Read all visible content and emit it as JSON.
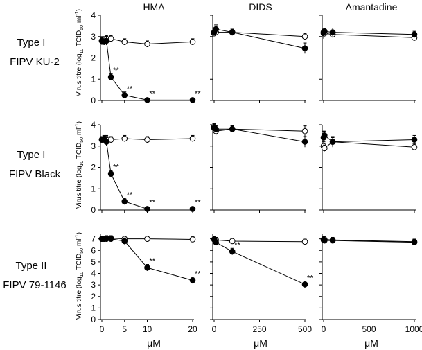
{
  "figure": {
    "columns": [
      "HMA",
      "DIDS",
      "Amantadine"
    ],
    "rows": [
      {
        "type": "Type I",
        "strain": "FIPV KU-2"
      },
      {
        "type": "Type I",
        "strain": "FIPV Black"
      },
      {
        "type": "Type II",
        "strain": "FIPV 79-1146"
      }
    ],
    "ylabel": {
      "prefix": "Virus titre (log",
      "sub10": "10",
      "tcid": " TCID",
      "sub50": "50",
      "unit": " ml",
      "sup": "-1",
      "suffix": ")"
    },
    "xlabel": "μM",
    "significance_label": "**",
    "colors": {
      "axis": "#000000",
      "filled": "#000000",
      "open": "#ffffff"
    }
  },
  "chart_data": [
    {
      "type": "line",
      "title": "HMA",
      "row": "Type I FIPV KU-2",
      "xlabel": "μM",
      "ylabel": "Virus titre (log10 TCID50 ml-1)",
      "xlim": [
        0,
        20
      ],
      "ylim": [
        0,
        4
      ],
      "xticks": [
        0,
        5,
        10,
        20
      ],
      "yticks": [
        0,
        1,
        2,
        3,
        4
      ],
      "xtick_labels": [],
      "ytick_labels": [
        "0",
        "1",
        "2",
        "3",
        "4"
      ],
      "series": [
        {
          "name": "filled",
          "x": [
            0,
            0.5,
            1,
            2,
            5,
            10,
            20
          ],
          "values": [
            2.8,
            2.75,
            2.8,
            1.1,
            0.25,
            0.02,
            0.02
          ],
          "errors": [
            0.1,
            0.05,
            0.1,
            0.05,
            0.05,
            0,
            0
          ]
        },
        {
          "name": "open",
          "x": [
            0,
            0.5,
            1,
            2,
            5,
            10,
            20
          ],
          "values": [
            2.8,
            2.85,
            2.9,
            2.9,
            2.75,
            2.65,
            2.75
          ],
          "errors": [
            0.05,
            0.05,
            0.05,
            0.05,
            0.05,
            0.05,
            0.05
          ]
        }
      ],
      "annotations": [
        {
          "x": 2,
          "y": 1.1,
          "text": "**"
        },
        {
          "x": 5,
          "y": 0.25,
          "text": "**"
        },
        {
          "x": 10,
          "y": 0.02,
          "text": "**"
        },
        {
          "x": 20,
          "y": 0.02,
          "text": "**"
        }
      ]
    },
    {
      "type": "line",
      "title": "DIDS",
      "row": "Type I FIPV KU-2",
      "xlabel": "μM",
      "xlim": [
        0,
        500
      ],
      "ylim": [
        0,
        4
      ],
      "xticks": [
        0,
        250,
        500
      ],
      "yticks": [
        0,
        1,
        2,
        3,
        4
      ],
      "xtick_labels": [],
      "ytick_labels": [],
      "series": [
        {
          "name": "filled",
          "x": [
            0,
            10,
            100,
            500
          ],
          "values": [
            3.2,
            3.35,
            3.2,
            2.45
          ],
          "errors": [
            0.05,
            0.1,
            0.05,
            0.15
          ]
        },
        {
          "name": "open",
          "x": [
            0,
            10,
            100,
            500
          ],
          "values": [
            3.15,
            3.2,
            3.2,
            3.0
          ],
          "errors": [
            0.05,
            0.05,
            0.05,
            0.05
          ]
        }
      ],
      "annotations": []
    },
    {
      "type": "line",
      "title": "Amantadine",
      "row": "Type I FIPV KU-2",
      "xlabel": "μM",
      "xlim": [
        0,
        1000
      ],
      "ylim": [
        0,
        4
      ],
      "xticks": [
        0,
        500,
        1000
      ],
      "yticks": [
        0,
        1,
        2,
        3,
        4
      ],
      "xtick_labels": [],
      "ytick_labels": [],
      "series": [
        {
          "name": "filled",
          "x": [
            0,
            10,
            100,
            1000
          ],
          "values": [
            3.2,
            3.25,
            3.2,
            3.1
          ],
          "errors": [
            0.05,
            0.05,
            0.1,
            0.05
          ]
        },
        {
          "name": "open",
          "x": [
            0,
            10,
            100,
            1000
          ],
          "values": [
            3.15,
            3.15,
            3.1,
            2.95
          ],
          "errors": [
            0.15,
            0.05,
            0.05,
            0.05
          ]
        }
      ],
      "annotations": []
    },
    {
      "type": "line",
      "title": "HMA",
      "row": "Type I FIPV Black",
      "xlabel": "μM",
      "ylabel": "Virus titre (log10 TCID50 ml-1)",
      "xlim": [
        0,
        20
      ],
      "ylim": [
        0,
        4
      ],
      "xticks": [
        0,
        5,
        10,
        20
      ],
      "yticks": [
        0,
        1,
        2,
        3,
        4
      ],
      "xtick_labels": [],
      "ytick_labels": [
        "0",
        "1",
        "2",
        "3",
        "4"
      ],
      "series": [
        {
          "name": "filled",
          "x": [
            0,
            0.5,
            1,
            2,
            5,
            10,
            20
          ],
          "values": [
            3.3,
            3.3,
            3.2,
            1.7,
            0.4,
            0.05,
            0.05
          ],
          "errors": [
            0.05,
            0.05,
            0.1,
            0.05,
            0.05,
            0,
            0
          ]
        },
        {
          "name": "open",
          "x": [
            0,
            0.5,
            1,
            2,
            5,
            10,
            20
          ],
          "values": [
            3.3,
            3.35,
            3.35,
            3.3,
            3.35,
            3.3,
            3.35
          ],
          "errors": [
            0.05,
            0.05,
            0.05,
            0.05,
            0.05,
            0.05,
            0.05
          ]
        }
      ],
      "annotations": [
        {
          "x": 2,
          "y": 1.7,
          "text": "**"
        },
        {
          "x": 5,
          "y": 0.4,
          "text": "**"
        },
        {
          "x": 10,
          "y": 0.05,
          "text": "**"
        },
        {
          "x": 20,
          "y": 0.05,
          "text": "**"
        }
      ]
    },
    {
      "type": "line",
      "title": "DIDS",
      "row": "Type I FIPV Black",
      "xlabel": "μM",
      "xlim": [
        0,
        500
      ],
      "ylim": [
        0,
        4
      ],
      "xticks": [
        0,
        250,
        500
      ],
      "yticks": [
        0,
        1,
        2,
        3,
        4
      ],
      "xtick_labels": [],
      "ytick_labels": [],
      "series": [
        {
          "name": "filled",
          "x": [
            0,
            10,
            100,
            500
          ],
          "values": [
            3.85,
            3.8,
            3.8,
            3.2
          ],
          "errors": [
            0.05,
            0.05,
            0.05,
            0.15
          ]
        },
        {
          "name": "open",
          "x": [
            0,
            10,
            100,
            500
          ],
          "values": [
            3.9,
            3.7,
            3.8,
            3.7
          ],
          "errors": [
            0.05,
            0.1,
            0.05,
            0.15
          ]
        }
      ],
      "annotations": []
    },
    {
      "type": "line",
      "title": "Amantadine",
      "row": "Type I FIPV Black",
      "xlabel": "μM",
      "xlim": [
        0,
        1000
      ],
      "ylim": [
        0,
        4
      ],
      "xticks": [
        0,
        500,
        1000
      ],
      "yticks": [
        0,
        1,
        2,
        3,
        4
      ],
      "xtick_labels": [],
      "ytick_labels": [],
      "series": [
        {
          "name": "filled",
          "x": [
            0,
            10,
            100,
            1000
          ],
          "values": [
            3.4,
            3.5,
            3.2,
            3.3
          ],
          "errors": [
            0.2,
            0.1,
            0.15,
            0.1
          ]
        },
        {
          "name": "open",
          "x": [
            0,
            10,
            100,
            1000
          ],
          "values": [
            3.0,
            2.9,
            3.2,
            2.95
          ],
          "errors": [
            0.1,
            0.05,
            0.1,
            0.05
          ]
        }
      ],
      "annotations": []
    },
    {
      "type": "line",
      "title": "HMA",
      "row": "Type II FIPV 79-1146",
      "xlabel": "μM",
      "ylabel": "Virus titre (log10 TCID50 ml-1)",
      "xlim": [
        0,
        20
      ],
      "ylim": [
        0,
        7.4
      ],
      "xticks": [
        0,
        5,
        10,
        20
      ],
      "yticks": [
        0,
        1,
        2,
        3,
        4,
        5,
        6,
        7
      ],
      "xtick_labels": [
        "0",
        "5",
        "10",
        "20"
      ],
      "ytick_labels": [
        "0",
        "1",
        "2",
        "3",
        "4",
        "5",
        "6",
        "7"
      ],
      "series": [
        {
          "name": "filled",
          "x": [
            0,
            0.5,
            1,
            2,
            5,
            10,
            20
          ],
          "values": [
            7.0,
            7.0,
            7.0,
            7.0,
            6.8,
            4.5,
            3.4
          ],
          "errors": [
            0.05,
            0.05,
            0.05,
            0.05,
            0.1,
            0.1,
            0.1
          ]
        },
        {
          "name": "open",
          "x": [
            0,
            0.5,
            1,
            2,
            5,
            10,
            20
          ],
          "values": [
            7.0,
            7.0,
            7.05,
            7.05,
            7.0,
            7.0,
            6.95
          ],
          "errors": [
            0.05,
            0.05,
            0.05,
            0.05,
            0.05,
            0.05,
            0.05
          ]
        }
      ],
      "annotations": [
        {
          "x": 10,
          "y": 4.5,
          "text": "**"
        },
        {
          "x": 20,
          "y": 3.4,
          "text": "**"
        }
      ]
    },
    {
      "type": "line",
      "title": "DIDS",
      "row": "Type II FIPV 79-1146",
      "xlabel": "μM",
      "xlim": [
        0,
        500
      ],
      "ylim": [
        0,
        7.4
      ],
      "xticks": [
        0,
        250,
        500
      ],
      "yticks": [
        0,
        1,
        2,
        3,
        4,
        5,
        6,
        7
      ],
      "xtick_labels": [
        "0",
        "250",
        "500"
      ],
      "ytick_labels": [],
      "series": [
        {
          "name": "filled",
          "x": [
            0,
            10,
            100,
            500
          ],
          "values": [
            6.95,
            6.7,
            5.9,
            3.05
          ],
          "errors": [
            0.1,
            0.1,
            0.1,
            0.1
          ]
        },
        {
          "name": "open",
          "x": [
            0,
            10,
            100,
            500
          ],
          "values": [
            6.95,
            6.9,
            6.8,
            6.75
          ],
          "errors": [
            0.05,
            0.05,
            0.05,
            0.05
          ]
        }
      ],
      "annotations": [
        {
          "x": 100,
          "y": 5.9,
          "text": "**"
        },
        {
          "x": 500,
          "y": 3.05,
          "text": "**"
        }
      ]
    },
    {
      "type": "line",
      "title": "Amantadine",
      "row": "Type II FIPV 79-1146",
      "xlabel": "μM",
      "xlim": [
        0,
        1000
      ],
      "ylim": [
        0,
        7.4
      ],
      "xticks": [
        0,
        500,
        1000
      ],
      "yticks": [
        0,
        1,
        2,
        3,
        4,
        5,
        6,
        7
      ],
      "xtick_labels": [
        "0",
        "500",
        "1000"
      ],
      "ytick_labels": [],
      "series": [
        {
          "name": "filled",
          "x": [
            0,
            10,
            100,
            1000
          ],
          "values": [
            6.9,
            6.85,
            6.85,
            6.7
          ],
          "errors": [
            0.05,
            0.05,
            0.05,
            0.05
          ]
        },
        {
          "name": "open",
          "x": [
            0,
            10,
            100,
            1000
          ],
          "values": [
            6.95,
            6.95,
            6.9,
            6.75
          ],
          "errors": [
            0.05,
            0.05,
            0.05,
            0.05
          ]
        }
      ],
      "annotations": []
    }
  ]
}
